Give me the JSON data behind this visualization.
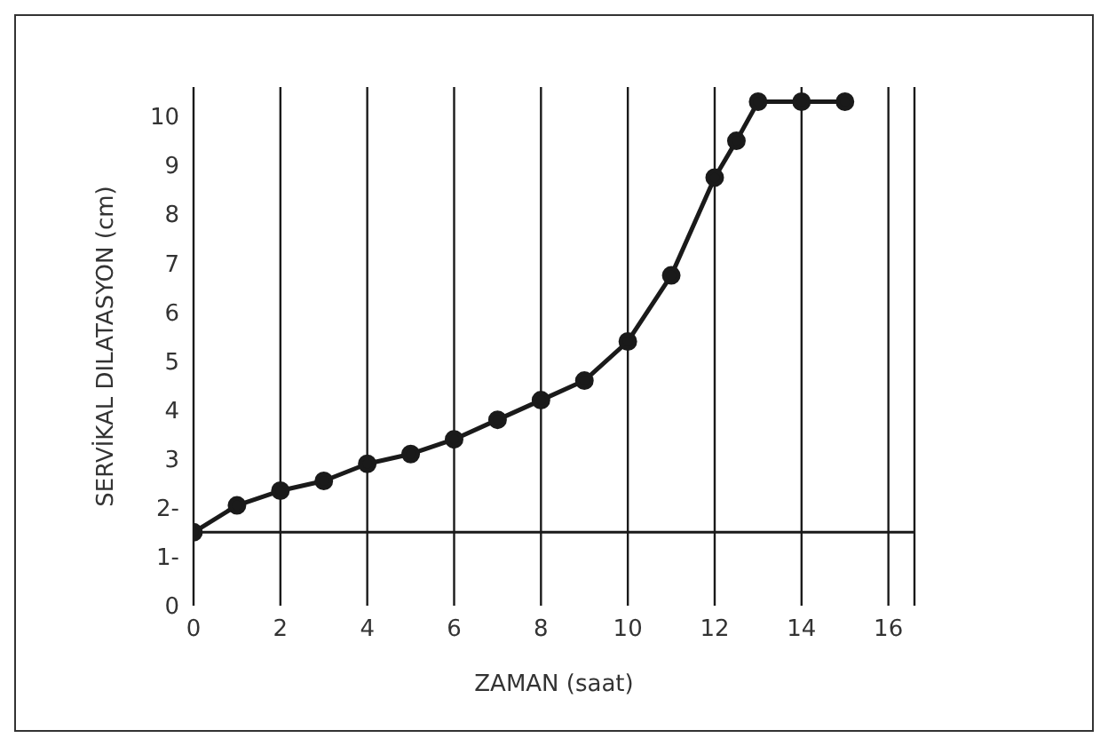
{
  "chart_data": {
    "type": "line",
    "xlabel": "ZAMAN (saat)",
    "ylabel": "SERVİKAL DILATASYON (cm)",
    "x": [
      0,
      1,
      2,
      3,
      4,
      5,
      6,
      7,
      8,
      9,
      10,
      11,
      12,
      12.5,
      13,
      14,
      15
    ],
    "series": [
      {
        "color": "#1a1a1a",
        "values": [
          1.5,
          2.05,
          2.35,
          2.55,
          2.9,
          3.1,
          3.4,
          3.8,
          4.2,
          4.6,
          5.4,
          6.75,
          8.75,
          9.5,
          10.3,
          10.3,
          10.3
        ]
      }
    ],
    "xlim": [
      0,
      16.6
    ],
    "xticks": [
      0,
      2,
      4,
      6,
      8,
      10,
      12,
      14,
      16
    ],
    "ylim": [
      0,
      10.6
    ],
    "yticks": [
      0,
      {
        "value": 1,
        "label": "1-"
      },
      {
        "value": 2,
        "label": "2-"
      },
      3,
      4,
      5,
      6,
      7,
      8,
      9,
      10
    ],
    "ref_lines": [
      {
        "axis": "y",
        "value": 1.5,
        "color": "#1a1a1a"
      }
    ],
    "grid": "x",
    "legend": false,
    "marker": "circle",
    "line_style": "solid"
  }
}
